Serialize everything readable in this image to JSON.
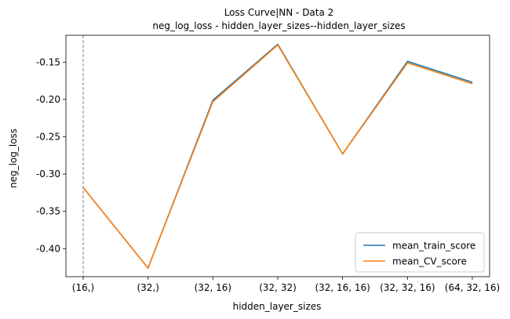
{
  "chart_data": {
    "type": "line",
    "title": "Loss Curve|NN - Data 2",
    "subtitle": "neg_log_loss - hidden_layer_sizes--hidden_layer_sizes",
    "xlabel": "hidden_layer_sizes",
    "ylabel": "neg_log_loss",
    "categories": [
      "(16,)",
      "(32,)",
      "(32, 16)",
      "(32, 32)",
      "(32, 16, 16)",
      "(32, 32, 16)",
      "(64, 32, 16)"
    ],
    "ylim": [
      -0.4375,
      -0.114
    ],
    "yticks": [
      -0.4,
      -0.35,
      -0.3,
      -0.25,
      -0.2,
      -0.15
    ],
    "ytick_labels": [
      "-0.40",
      "-0.35",
      "-0.30",
      "-0.25",
      "-0.20",
      "-0.15"
    ],
    "grid": false,
    "legend_position": "lower-right",
    "vline_at_category": "(16,)",
    "series": [
      {
        "name": "mean_train_score",
        "color": "#1f77b4",
        "values": [
          -0.318,
          -0.426,
          -0.201,
          -0.126,
          -0.273,
          -0.149,
          -0.177
        ]
      },
      {
        "name": "mean_CV_score",
        "color": "#ff7f0e",
        "values": [
          -0.318,
          -0.426,
          -0.203,
          -0.127,
          -0.273,
          -0.151,
          -0.179
        ]
      }
    ]
  }
}
